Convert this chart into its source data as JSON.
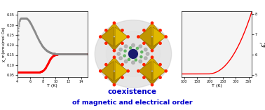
{
  "left_chart": {
    "xlabel": "T (K)",
    "ylabel": "χ_m(emu/mol Oe)",
    "xlim": [
      4,
      15
    ],
    "ylim": [
      0.04,
      0.37
    ],
    "xticks": [
      4,
      6,
      8,
      10,
      12,
      14
    ],
    "yticks": [
      0.05,
      0.1,
      0.15,
      0.2,
      0.25,
      0.3,
      0.35
    ],
    "red_flat_low": 0.063,
    "red_transition_T": 8.8,
    "red_plateau": 0.155,
    "gray_peak_T": 5.2,
    "gray_peak_y": 0.335,
    "gray_end_y": 0.155,
    "background": "#f5f5f5"
  },
  "right_chart": {
    "xlabel": "T (K)",
    "ylabel_latex": "$\\varepsilon_r'$",
    "xlim": [
      90,
      362
    ],
    "ylim": [
      4.9,
      8.15
    ],
    "xticks": [
      100,
      150,
      200,
      250,
      300,
      350
    ],
    "yticks": [
      5,
      6,
      7,
      8
    ],
    "flat_val": 5.05,
    "curve_start_T": 190,
    "curve_end_T": 358,
    "curve_end_val": 7.95,
    "background": "#f5f5f5"
  },
  "center_text_line1": "coexistence",
  "center_text_line2": "of magnetic and electrical order",
  "text_color": "#0000cc",
  "fig_bg": "#ffffff",
  "oct_color": "#d4a800",
  "oct_edge": "#8a6800",
  "dot_color": "#ff2200",
  "center_dot_color": "#1a1a6e",
  "glow_color": "#c8c8c8"
}
